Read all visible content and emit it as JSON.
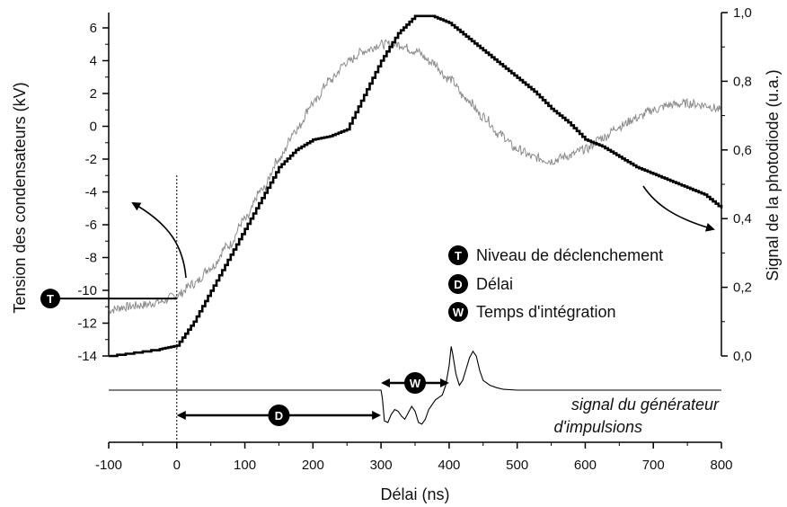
{
  "chart_data": {
    "type": "line",
    "xlabel": "Délai (ns)",
    "ylabel_left": "Tension des condensateurs (kV)",
    "ylabel_right": "Signal de la photodiode (u.a.)",
    "xlim": [
      -100,
      800
    ],
    "ylim_left": [
      -14,
      7
    ],
    "ylim_right": [
      0,
      1
    ],
    "xticks": [
      "-100",
      "0",
      "100",
      "200",
      "300",
      "400",
      "500",
      "600",
      "700",
      "800"
    ],
    "yticks_left": [
      "-14",
      "-12",
      "-10",
      "-8",
      "-6",
      "-4",
      "-2",
      "0",
      "2",
      "4",
      "6"
    ],
    "yticks_right": [
      "0,0",
      "0,2",
      "0,4",
      "0,6",
      "0,8",
      "1,0"
    ],
    "series": [
      {
        "axis": "right",
        "color": "#000000",
        "style": "step",
        "x": [
          -100,
          -25,
          0,
          25,
          50,
          75,
          100,
          125,
          150,
          175,
          200,
          225,
          250,
          275,
          300,
          325,
          350,
          375,
          400,
          425,
          450,
          475,
          500,
          525,
          550,
          575,
          600,
          625,
          650,
          675,
          700,
          725,
          750,
          775,
          800
        ],
        "y": [
          0.0,
          0.02,
          0.03,
          0.1,
          0.19,
          0.28,
          0.37,
          0.46,
          0.55,
          0.6,
          0.63,
          0.64,
          0.66,
          0.76,
          0.86,
          0.94,
          0.99,
          0.99,
          0.97,
          0.93,
          0.89,
          0.85,
          0.81,
          0.77,
          0.72,
          0.68,
          0.63,
          0.61,
          0.58,
          0.55,
          0.53,
          0.51,
          0.49,
          0.47,
          0.43
        ]
      },
      {
        "axis": "left",
        "color": "#8c8c8c",
        "style": "noisy",
        "x": [
          -100,
          -75,
          -50,
          -25,
          0,
          25,
          50,
          75,
          100,
          125,
          150,
          175,
          200,
          225,
          250,
          275,
          300,
          325,
          350,
          375,
          400,
          425,
          450,
          475,
          500,
          525,
          550,
          575,
          600,
          625,
          650,
          675,
          700,
          725,
          750,
          775,
          800
        ],
        "y": [
          -11.2,
          -11.0,
          -10.9,
          -10.7,
          -10.3,
          -9.6,
          -8.6,
          -7.3,
          -5.7,
          -3.9,
          -2.0,
          -0.2,
          1.4,
          2.8,
          3.9,
          4.6,
          5.0,
          5.0,
          4.6,
          3.9,
          2.9,
          1.7,
          0.6,
          -0.5,
          -1.4,
          -1.9,
          -2.1,
          -1.8,
          -1.4,
          -0.7,
          0.0,
          0.5,
          1.0,
          1.3,
          1.4,
          1.3,
          1.0
        ]
      }
    ],
    "pulse_trace": {
      "x": [
        -100,
        295,
        300,
        302,
        305,
        310,
        315,
        320,
        325,
        330,
        335,
        340,
        345,
        350,
        355,
        360,
        365,
        370,
        380,
        390,
        395,
        400,
        403,
        405,
        410,
        415,
        420,
        425,
        430,
        435,
        440,
        445,
        450,
        460,
        470,
        480,
        500,
        520,
        560,
        600,
        800
      ],
      "y": [
        0,
        0,
        0,
        -0.5,
        -1.9,
        -2.0,
        -1.5,
        -1.2,
        -1.3,
        -1.6,
        -1.8,
        -1.4,
        -1.0,
        -1.3,
        -2.0,
        -2.1,
        -1.8,
        -1.2,
        -0.6,
        -0.3,
        0.3,
        1.5,
        2.7,
        2.3,
        1.0,
        0.3,
        0.6,
        1.3,
        2.0,
        2.4,
        2.1,
        1.2,
        0.6,
        0.3,
        0.15,
        0.05,
        0.0,
        0.0,
        0.0,
        0.0,
        0.0
      ]
    },
    "trigger_level_kV": -10.5,
    "legend": [
      {
        "badge": "T",
        "label": "Niveau de déclenchement"
      },
      {
        "badge": "D",
        "label": "Délai"
      },
      {
        "badge": "W",
        "label": "Temps d'intégration"
      }
    ],
    "annotations": {
      "pulse_label_line1": "signal du générateur",
      "pulse_label_line2": "d'impulsions",
      "delay_badge": "D",
      "delay_range_ns": [
        0,
        300
      ],
      "window_badge": "W",
      "window_range_ns": [
        300,
        400
      ],
      "trigger_badge": "T"
    }
  }
}
